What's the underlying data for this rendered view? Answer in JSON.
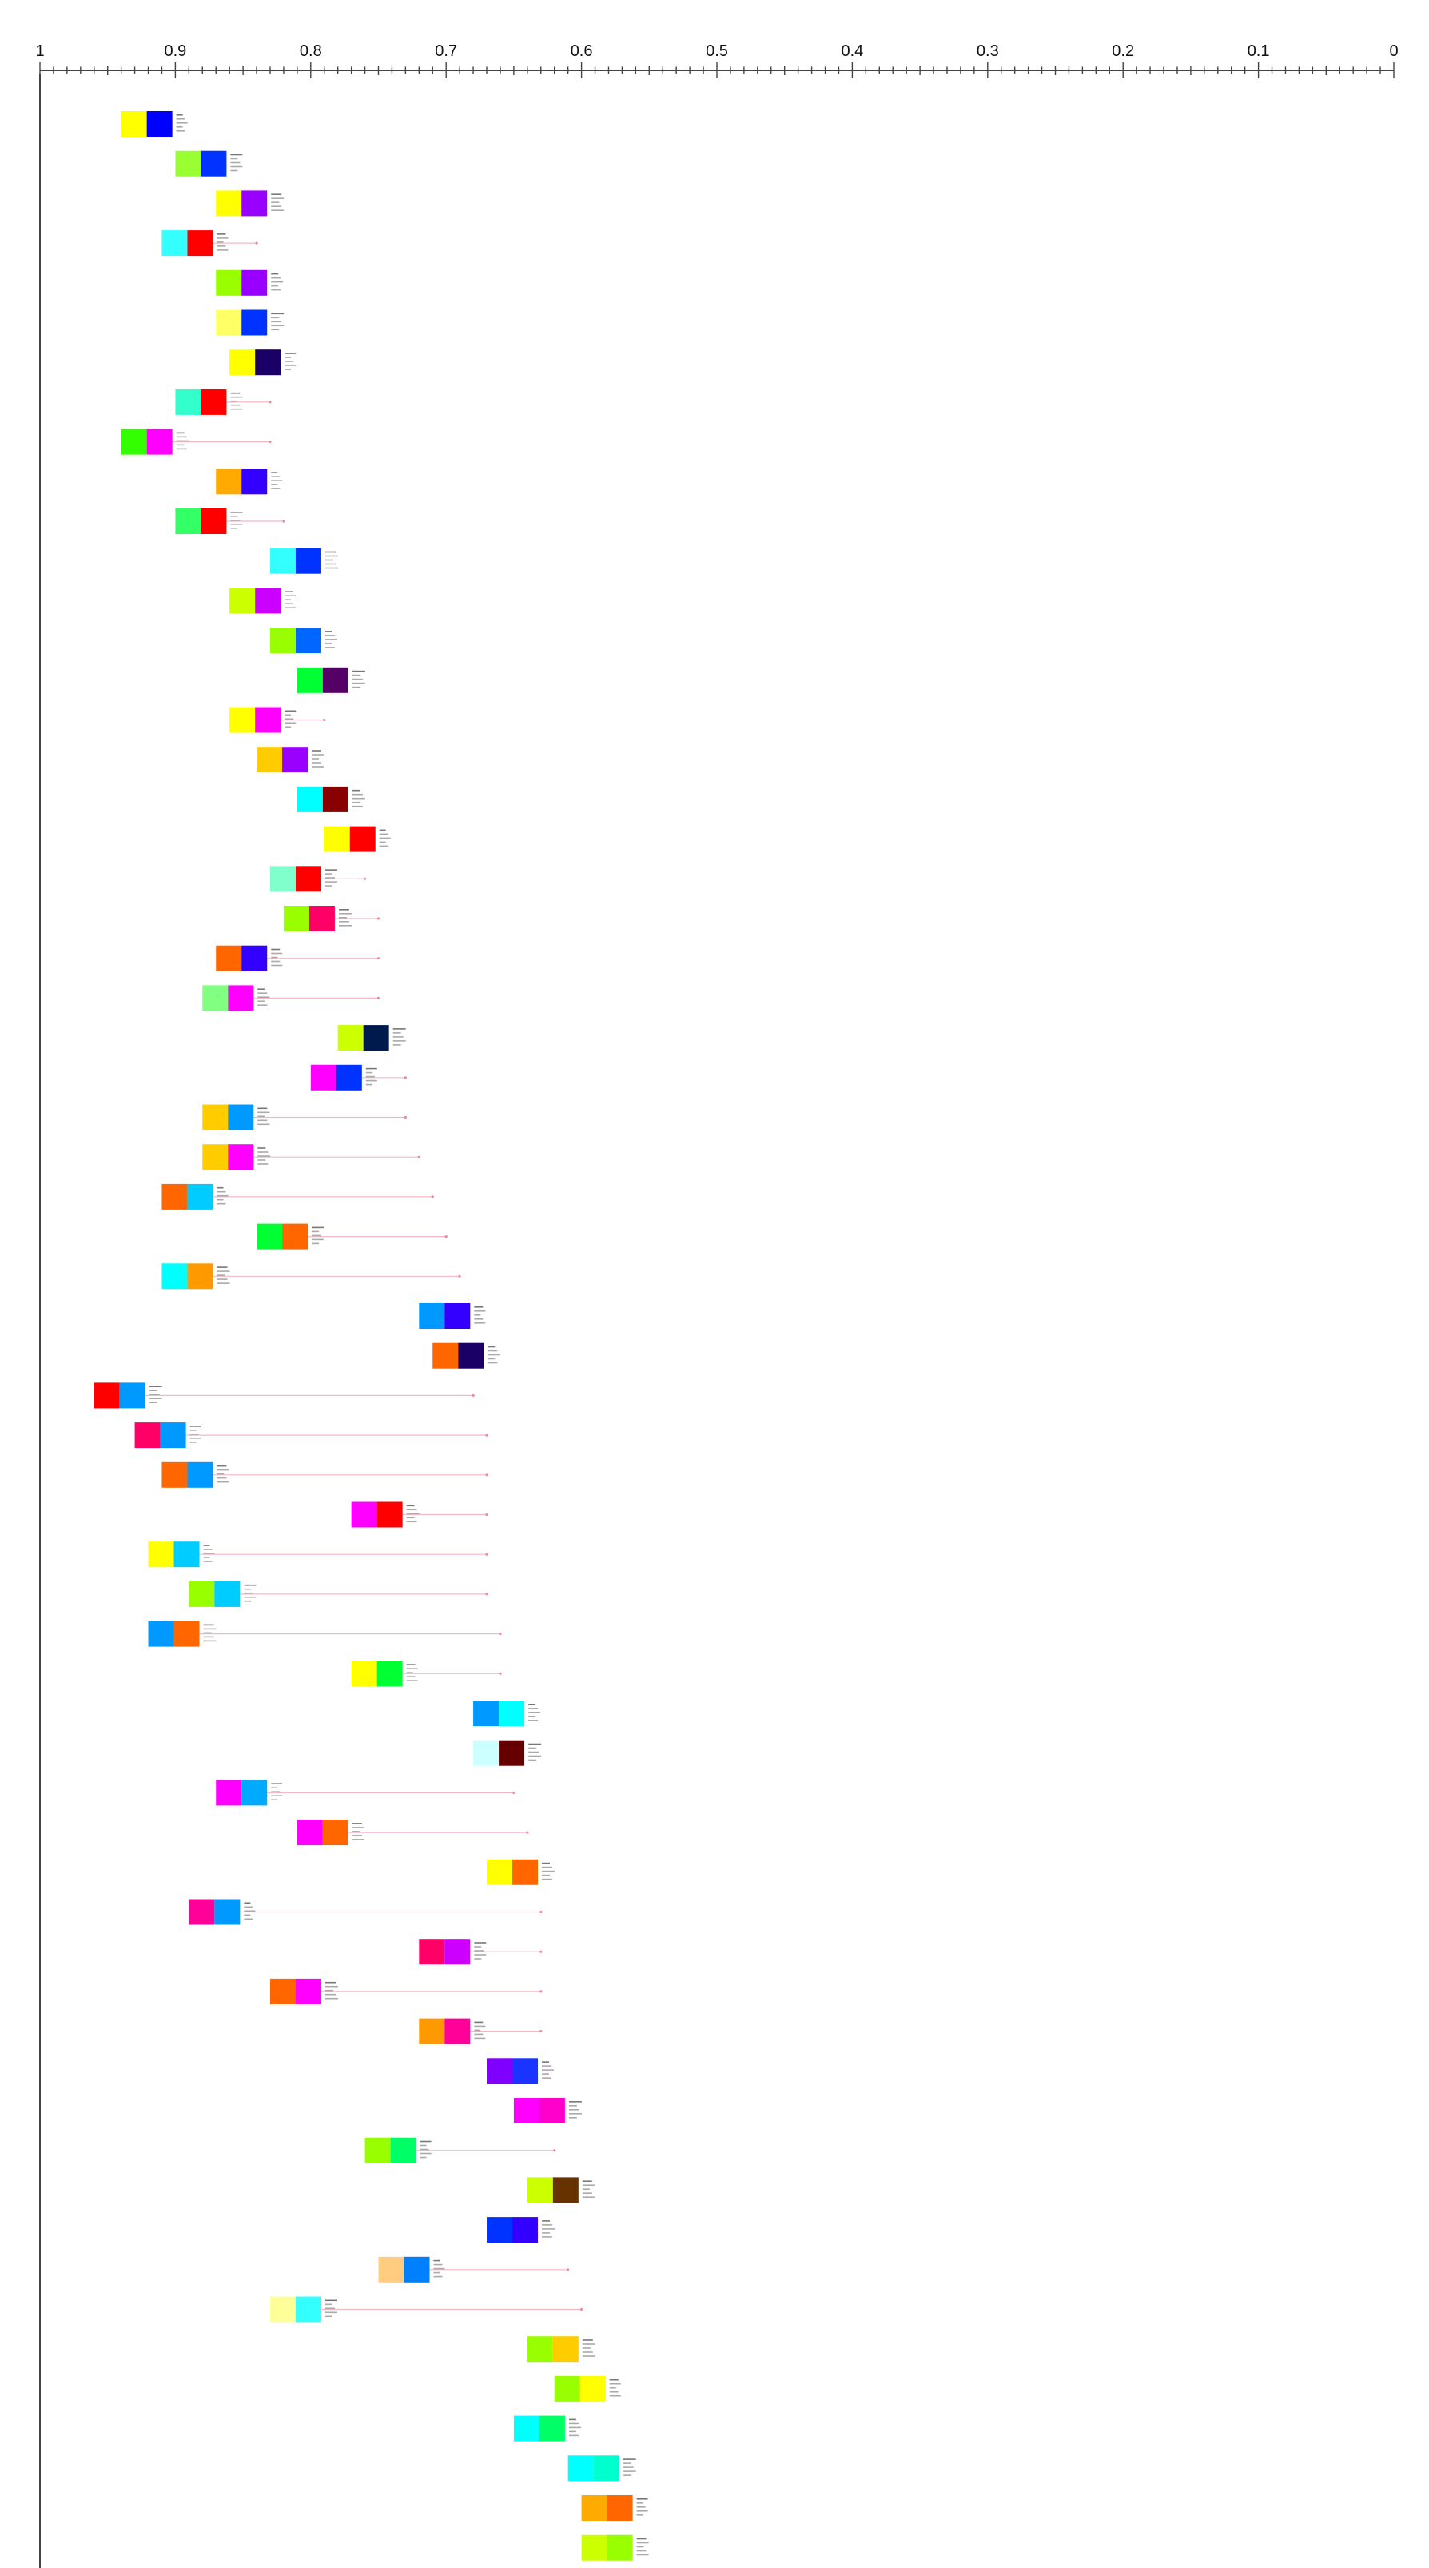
{
  "chart_data": {
    "type": "scatter",
    "title": "",
    "xlabel": "",
    "ylabel": "",
    "x_axis": {
      "range": [
        1,
        0
      ],
      "reversed": true,
      "position": "top",
      "major_ticks": [
        1,
        0.9,
        0.8,
        0.7,
        0.6,
        0.5,
        0.4,
        0.3,
        0.2,
        0.1,
        0
      ],
      "major_tick_labels": [
        "1",
        "0.9",
        "0.8",
        "0.7",
        "0.6",
        "0.5",
        "0.4",
        "0.3",
        "0.2",
        "0.1",
        "0"
      ],
      "minor_step": 0.01
    },
    "grid": false,
    "legend": "none",
    "items": [
      {
        "x": 0.94,
        "end": null,
        "colors": [
          "#ffff00",
          "#0000ff"
        ]
      },
      {
        "x": 0.9,
        "end": null,
        "colors": [
          "#99ff33",
          "#0033ff"
        ]
      },
      {
        "x": 0.87,
        "end": null,
        "colors": [
          "#ffff00",
          "#9900ff"
        ]
      },
      {
        "x": 0.91,
        "end": 0.84,
        "colors": [
          "#33ffff",
          "#ff0000"
        ]
      },
      {
        "x": 0.87,
        "end": null,
        "colors": [
          "#99ff00",
          "#9900ff"
        ]
      },
      {
        "x": 0.87,
        "end": null,
        "colors": [
          "#ffff66",
          "#0033ff"
        ]
      },
      {
        "x": 0.86,
        "end": null,
        "colors": [
          "#ffff00",
          "#1a0066"
        ]
      },
      {
        "x": 0.9,
        "end": 0.83,
        "colors": [
          "#33ffcc",
          "#ff0000"
        ]
      },
      {
        "x": 0.94,
        "end": 0.83,
        "colors": [
          "#33ff00",
          "#ff00ff"
        ]
      },
      {
        "x": 0.87,
        "end": null,
        "colors": [
          "#ffaa00",
          "#3300ff"
        ]
      },
      {
        "x": 0.9,
        "end": 0.82,
        "colors": [
          "#33ff66",
          "#ff0000"
        ]
      },
      {
        "x": 0.83,
        "end": null,
        "colors": [
          "#33ffff",
          "#0033ff"
        ]
      },
      {
        "x": 0.86,
        "end": null,
        "colors": [
          "#ccff00",
          "#cc00ff"
        ]
      },
      {
        "x": 0.83,
        "end": null,
        "colors": [
          "#99ff00",
          "#0066ff"
        ]
      },
      {
        "x": 0.81,
        "end": null,
        "colors": [
          "#00ff33",
          "#550066"
        ]
      },
      {
        "x": 0.86,
        "end": 0.79,
        "colors": [
          "#ffff00",
          "#ff00ff"
        ]
      },
      {
        "x": 0.84,
        "end": null,
        "colors": [
          "#ffcc00",
          "#9900ff"
        ]
      },
      {
        "x": 0.81,
        "end": null,
        "colors": [
          "#00ffff",
          "#880000"
        ]
      },
      {
        "x": 0.79,
        "end": null,
        "colors": [
          "#ffff00",
          "#ff0000"
        ]
      },
      {
        "x": 0.83,
        "end": 0.76,
        "colors": [
          "#80ffcc",
          "#ff0000"
        ]
      },
      {
        "x": 0.82,
        "end": 0.75,
        "colors": [
          "#99ff00",
          "#ff0066"
        ]
      },
      {
        "x": 0.87,
        "end": 0.75,
        "colors": [
          "#ff6600",
          "#3300ff"
        ]
      },
      {
        "x": 0.88,
        "end": 0.75,
        "colors": [
          "#80ff80",
          "#ff00ff"
        ]
      },
      {
        "x": 0.78,
        "end": null,
        "colors": [
          "#ccff00",
          "#001a4d"
        ]
      },
      {
        "x": 0.8,
        "end": 0.73,
        "colors": [
          "#ff00ff",
          "#0033ff"
        ]
      },
      {
        "x": 0.88,
        "end": 0.73,
        "colors": [
          "#ffcc00",
          "#0099ff"
        ]
      },
      {
        "x": 0.88,
        "end": 0.72,
        "colors": [
          "#ffcc00",
          "#ff00ff"
        ]
      },
      {
        "x": 0.91,
        "end": 0.71,
        "colors": [
          "#ff6600",
          "#00ccff"
        ]
      },
      {
        "x": 0.84,
        "end": 0.7,
        "colors": [
          "#00ff33",
          "#ff6600"
        ]
      },
      {
        "x": 0.91,
        "end": 0.69,
        "colors": [
          "#00ffff",
          "#ff9900"
        ]
      },
      {
        "x": 0.72,
        "end": null,
        "colors": [
          "#0099ff",
          "#3300ff"
        ]
      },
      {
        "x": 0.71,
        "end": null,
        "colors": [
          "#ff6600",
          "#1a0066"
        ]
      },
      {
        "x": 0.96,
        "end": 0.68,
        "colors": [
          "#ff0000",
          "#0099ff"
        ]
      },
      {
        "x": 0.93,
        "end": 0.67,
        "colors": [
          "#ff0066",
          "#0099ff"
        ]
      },
      {
        "x": 0.91,
        "end": 0.67,
        "colors": [
          "#ff6600",
          "#0099ff"
        ]
      },
      {
        "x": 0.77,
        "end": 0.67,
        "colors": [
          "#ff00ff",
          "#ff0000"
        ]
      },
      {
        "x": 0.92,
        "end": 0.67,
        "colors": [
          "#ffff00",
          "#00ccff"
        ]
      },
      {
        "x": 0.89,
        "end": 0.67,
        "colors": [
          "#99ff00",
          "#00ccff"
        ]
      },
      {
        "x": 0.92,
        "end": 0.66,
        "colors": [
          "#0099ff",
          "#ff6600"
        ]
      },
      {
        "x": 0.77,
        "end": 0.66,
        "colors": [
          "#ffff00",
          "#00ff33"
        ]
      },
      {
        "x": 0.68,
        "end": null,
        "colors": [
          "#0099ff",
          "#00ffff"
        ]
      },
      {
        "x": 0.68,
        "end": null,
        "colors": [
          "#ccffff",
          "#660000"
        ]
      },
      {
        "x": 0.87,
        "end": 0.65,
        "colors": [
          "#ff00ff",
          "#00aaff"
        ]
      },
      {
        "x": 0.81,
        "end": 0.64,
        "colors": [
          "#ff00ff",
          "#ff6600"
        ]
      },
      {
        "x": 0.67,
        "end": null,
        "colors": [
          "#ffff00",
          "#ff6600"
        ]
      },
      {
        "x": 0.89,
        "end": 0.63,
        "colors": [
          "#ff0099",
          "#0099ff"
        ]
      },
      {
        "x": 0.72,
        "end": 0.63,
        "colors": [
          "#ff0066",
          "#cc00ff"
        ]
      },
      {
        "x": 0.83,
        "end": 0.63,
        "colors": [
          "#ff6600",
          "#ff00ff"
        ]
      },
      {
        "x": 0.72,
        "end": 0.63,
        "colors": [
          "#ff9900",
          "#ff0099"
        ]
      },
      {
        "x": 0.67,
        "end": null,
        "colors": [
          "#8000ff",
          "#1a33ff"
        ]
      },
      {
        "x": 0.65,
        "end": null,
        "colors": [
          "#ff00ff",
          "#ff00cc"
        ]
      },
      {
        "x": 0.76,
        "end": 0.62,
        "colors": [
          "#99ff00",
          "#00ff66"
        ]
      },
      {
        "x": 0.64,
        "end": null,
        "colors": [
          "#ccff00",
          "#663300"
        ]
      },
      {
        "x": 0.67,
        "end": null,
        "colors": [
          "#0033ff",
          "#3300ff"
        ]
      },
      {
        "x": 0.75,
        "end": 0.61,
        "colors": [
          "#ffcc80",
          "#0080ff"
        ]
      },
      {
        "x": 0.83,
        "end": 0.6,
        "colors": [
          "#ffff99",
          "#33ffff"
        ]
      },
      {
        "x": 0.64,
        "end": null,
        "colors": [
          "#99ff00",
          "#ffcc00"
        ]
      },
      {
        "x": 0.62,
        "end": null,
        "colors": [
          "#99ff00",
          "#ffff00"
        ]
      },
      {
        "x": 0.65,
        "end": null,
        "colors": [
          "#00ffff",
          "#00ff66"
        ]
      },
      {
        "x": 0.61,
        "end": null,
        "colors": [
          "#00ffff",
          "#00ffcc"
        ]
      },
      {
        "x": 0.6,
        "end": null,
        "colors": [
          "#ffaa00",
          "#ff6600"
        ]
      },
      {
        "x": 0.6,
        "end": null,
        "colors": [
          "#ccff00",
          "#99ff00"
        ]
      }
    ]
  }
}
